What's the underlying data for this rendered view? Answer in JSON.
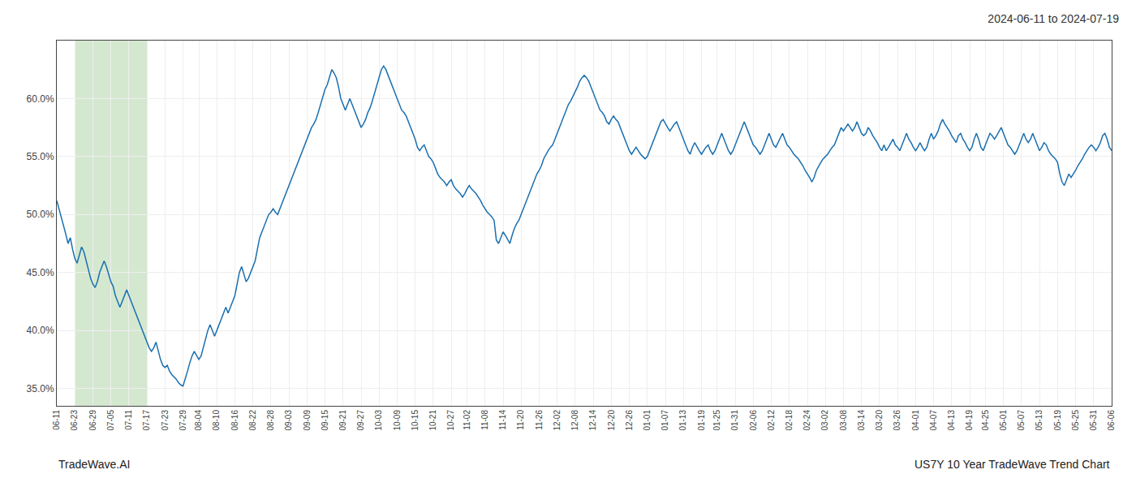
{
  "chart_data": {
    "type": "line",
    "title": "2024-06-11 to 2024-07-19",
    "annotations": [
      "TradeWave.AI",
      "US7Y 10 Year TradeWave Trend Chart"
    ],
    "categories": [
      "06-11",
      null,
      null,
      null,
      null,
      null,
      null,
      null,
      "06-23",
      null,
      null,
      null,
      null,
      null,
      null,
      null,
      "06-29",
      null,
      null,
      null,
      null,
      null,
      null,
      null,
      "07-05",
      null,
      null,
      null,
      null,
      null,
      null,
      null,
      "07-11",
      null,
      null,
      null,
      null,
      null,
      null,
      null,
      "07-17",
      null,
      null,
      null,
      null,
      null,
      null,
      null,
      "07-23",
      null,
      null,
      null,
      null,
      null,
      null,
      null,
      "07-29",
      null,
      null,
      null,
      null,
      null,
      null,
      "08-04",
      null,
      null,
      null,
      null,
      null,
      null,
      null,
      "08-10",
      null,
      null,
      null,
      null,
      null,
      null,
      null,
      "08-16",
      null,
      null,
      null,
      null,
      null,
      null,
      null,
      "08-22",
      null,
      null,
      null,
      null,
      null,
      null,
      null,
      "08-28",
      null,
      null,
      null,
      null,
      null,
      null,
      null,
      "09-03",
      null,
      null,
      null,
      null,
      null,
      null,
      null,
      "09-09",
      null,
      null,
      null,
      null,
      null,
      null,
      null,
      "09-15",
      null,
      null,
      null,
      null,
      null,
      null,
      null,
      "09-21",
      null,
      null,
      null,
      null,
      null,
      null,
      null,
      "09-27",
      null,
      null,
      null,
      null,
      null,
      null,
      null,
      "10-03",
      null,
      null,
      null,
      null,
      null,
      null,
      null,
      "10-09",
      null,
      null,
      null,
      null,
      null,
      null,
      null,
      "10-15",
      null,
      null,
      null,
      null,
      null,
      null,
      null,
      "10-21",
      null,
      null,
      null,
      null,
      null,
      null,
      null,
      "10-27",
      null,
      null,
      null,
      null,
      null,
      null,
      "11-02",
      null,
      null,
      null,
      null,
      null,
      null,
      null,
      "11-08",
      null,
      null,
      null,
      null,
      null,
      null,
      null,
      "11-14",
      null,
      null,
      null,
      null,
      null,
      null,
      null,
      "11-20",
      null,
      null,
      null,
      null,
      null,
      null,
      null,
      "11-26",
      null,
      null,
      null,
      null,
      null,
      null,
      null,
      "12-02",
      null,
      null,
      null,
      null,
      null,
      null,
      null,
      "12-08",
      null,
      null,
      null,
      null,
      null,
      null,
      null,
      "12-14",
      null,
      null,
      null,
      null,
      null,
      null,
      null,
      "12-20",
      null,
      null,
      null,
      null,
      null,
      null,
      null,
      "12-26",
      null,
      null,
      null,
      null,
      null,
      null,
      null,
      "01-01",
      null,
      null,
      null,
      null,
      null,
      null,
      null,
      "01-07",
      null,
      null,
      null,
      null,
      null,
      null,
      null,
      "01-13",
      null,
      null,
      null,
      null,
      null,
      null,
      null,
      "01-19",
      null,
      null,
      null,
      null,
      null,
      null,
      "01-25",
      null,
      null,
      null,
      null,
      null,
      null,
      null,
      "01-31",
      null,
      null,
      null,
      null,
      null,
      null,
      null,
      "02-06",
      null,
      null,
      null,
      null,
      null,
      null,
      null,
      "02-12",
      null,
      null,
      null,
      null,
      null,
      null,
      null,
      "02-18",
      null,
      null,
      null,
      null,
      null,
      null,
      null,
      "02-24",
      null,
      null,
      null,
      null,
      null,
      null,
      null,
      "03-02",
      null,
      null,
      null,
      null,
      null,
      null,
      null,
      "03-08",
      null,
      null,
      null,
      null,
      null,
      null,
      null,
      "03-14",
      null,
      null,
      null,
      null,
      null,
      null,
      null,
      "03-20",
      null,
      null,
      null,
      null,
      null,
      null,
      null,
      "03-26",
      null,
      null,
      null,
      null,
      null,
      null,
      null,
      "04-01",
      null,
      null,
      null,
      null,
      null,
      null,
      null,
      "04-07",
      null,
      null,
      null,
      null,
      null,
      null,
      null,
      "04-13",
      null,
      null,
      null,
      null,
      null,
      null,
      null,
      "04-19",
      null,
      null,
      null,
      null,
      null,
      null,
      "04-25",
      null,
      null,
      null,
      null,
      null,
      null,
      null,
      "05-01",
      null,
      null,
      null,
      null,
      null,
      null,
      null,
      "05-07",
      null,
      null,
      null,
      null,
      null,
      null,
      null,
      "05-13",
      null,
      null,
      null,
      null,
      null,
      null,
      null,
      "05-19",
      null,
      null,
      null,
      null,
      null,
      null,
      null,
      "05-25",
      null,
      null,
      null,
      null,
      null,
      null,
      null,
      "05-31",
      null,
      null,
      null,
      null,
      null,
      null,
      null,
      "06-06"
    ],
    "values": [
      51.2,
      50.5,
      49.8,
      49.0,
      48.3,
      47.5,
      48.0,
      47.0,
      46.2,
      45.8,
      46.5,
      47.2,
      46.8,
      46.0,
      45.2,
      44.5,
      44.0,
      43.7,
      44.2,
      45.0,
      45.5,
      46.0,
      45.5,
      44.8,
      44.2,
      43.8,
      43.0,
      42.5,
      42.0,
      42.5,
      43.0,
      43.5,
      43.0,
      42.5,
      42.0,
      41.5,
      41.0,
      40.5,
      40.0,
      39.5,
      39.0,
      38.5,
      38.2,
      38.5,
      39.0,
      38.2,
      37.5,
      37.0,
      36.8,
      37.0,
      36.5,
      36.2,
      36.0,
      35.8,
      35.5,
      35.3,
      35.2,
      35.8,
      36.5,
      37.2,
      37.8,
      38.2,
      37.8,
      37.5,
      37.8,
      38.5,
      39.2,
      40.0,
      40.5,
      40.0,
      39.5,
      40.0,
      40.5,
      41.0,
      41.5,
      42.0,
      41.5,
      42.0,
      42.5,
      43.0,
      44.0,
      45.0,
      45.5,
      44.8,
      44.2,
      44.5,
      45.0,
      45.5,
      46.0,
      47.0,
      48.0,
      48.5,
      49.0,
      49.5,
      50.0,
      50.2,
      50.5,
      50.2,
      50.0,
      50.5,
      51.0,
      51.5,
      52.0,
      52.5,
      53.0,
      53.5,
      54.0,
      54.5,
      55.0,
      55.5,
      56.0,
      56.5,
      57.0,
      57.5,
      57.8,
      58.2,
      58.8,
      59.5,
      60.2,
      60.8,
      61.2,
      61.8,
      62.5,
      62.2,
      61.8,
      61.0,
      60.0,
      59.5,
      59.0,
      59.5,
      60.0,
      59.5,
      59.0,
      58.5,
      58.0,
      57.5,
      57.8,
      58.2,
      58.8,
      59.2,
      59.8,
      60.5,
      61.2,
      61.8,
      62.5,
      62.8,
      62.5,
      62.0,
      61.5,
      61.0,
      60.5,
      60.0,
      59.5,
      59.0,
      58.8,
      58.5,
      58.0,
      57.5,
      57.0,
      56.5,
      55.8,
      55.5,
      55.8,
      56.0,
      55.5,
      55.0,
      54.8,
      54.5,
      54.0,
      53.5,
      53.2,
      53.0,
      52.8,
      52.5,
      52.8,
      53.0,
      52.5,
      52.2,
      52.0,
      51.8,
      51.5,
      51.8,
      52.2,
      52.5,
      52.2,
      52.0,
      51.8,
      51.5,
      51.2,
      50.8,
      50.5,
      50.2,
      50.0,
      49.8,
      49.5,
      47.8,
      47.5,
      48.0,
      48.5,
      48.2,
      47.8,
      47.5,
      48.2,
      48.8,
      49.2,
      49.5,
      50.0,
      50.5,
      51.0,
      51.5,
      52.0,
      52.5,
      53.0,
      53.5,
      53.8,
      54.2,
      54.8,
      55.2,
      55.5,
      55.8,
      56.0,
      56.5,
      57.0,
      57.5,
      58.0,
      58.5,
      59.0,
      59.5,
      59.8,
      60.2,
      60.5,
      61.0,
      61.5,
      61.8,
      62.0,
      61.8,
      61.5,
      61.0,
      60.5,
      60.0,
      59.5,
      59.0,
      58.8,
      58.5,
      58.0,
      57.8,
      58.2,
      58.5,
      58.2,
      58.0,
      57.5,
      57.0,
      56.5,
      56.0,
      55.5,
      55.2,
      55.5,
      55.8,
      55.5,
      55.2,
      55.0,
      54.8,
      55.0,
      55.5,
      56.0,
      56.5,
      57.0,
      57.5,
      58.0,
      58.2,
      57.8,
      57.5,
      57.2,
      57.5,
      57.8,
      58.0,
      57.5,
      57.0,
      56.5,
      56.0,
      55.5,
      55.2,
      55.8,
      56.2,
      55.8,
      55.5,
      55.2,
      55.5,
      55.8,
      56.0,
      55.5,
      55.2,
      55.5,
      56.0,
      56.5,
      57.0,
      56.5,
      56.0,
      55.5,
      55.2,
      55.5,
      56.0,
      56.5,
      57.0,
      57.5,
      58.0,
      57.5,
      57.0,
      56.5,
      56.0,
      55.8,
      55.5,
      55.2,
      55.5,
      56.0,
      56.5,
      57.0,
      56.5,
      56.0,
      55.8,
      56.2,
      56.5,
      57.0,
      56.5,
      56.0,
      55.8,
      55.5,
      55.2,
      55.0,
      54.8,
      54.5,
      54.2,
      53.8,
      53.5,
      53.2,
      52.8,
      53.2,
      53.8,
      54.2,
      54.5,
      54.8,
      55.0,
      55.2,
      55.5,
      55.8,
      56.0,
      56.5,
      57.0,
      57.5,
      57.2,
      57.5,
      57.8,
      57.5,
      57.2,
      57.5,
      58.0,
      57.5,
      57.0,
      56.8,
      57.0,
      57.5,
      57.2,
      56.8,
      56.5,
      56.2,
      55.8,
      55.5,
      56.0,
      55.5,
      55.8,
      56.2,
      56.5,
      56.0,
      55.8,
      55.5,
      56.0,
      56.5,
      57.0,
      56.5,
      56.2,
      55.8,
      55.5,
      55.8,
      56.2,
      55.8,
      55.5,
      55.8,
      56.5,
      57.0,
      56.5,
      56.8,
      57.2,
      57.8,
      58.2,
      57.8,
      57.5,
      57.2,
      56.8,
      56.5,
      56.2,
      56.8,
      57.0,
      56.5,
      56.2,
      55.8,
      55.5,
      55.8,
      56.5,
      57.0,
      56.5,
      55.8,
      55.5,
      56.0,
      56.5,
      57.0,
      56.8,
      56.5,
      56.8,
      57.2,
      57.5,
      57.0,
      56.5,
      56.0,
      55.8,
      55.5,
      55.2,
      55.5,
      56.0,
      56.5,
      57.0,
      56.5,
      56.2,
      56.5,
      57.0,
      56.5,
      56.0,
      55.5,
      55.8,
      56.2,
      56.0,
      55.5,
      55.2,
      55.0,
      54.8,
      54.5,
      53.5,
      52.8,
      52.5,
      53.0,
      53.5,
      53.2,
      53.5,
      53.8,
      54.2,
      54.5,
      54.8,
      55.2,
      55.5,
      55.8,
      56.0,
      55.8,
      55.5,
      55.8,
      56.2,
      56.8,
      57.0,
      56.5,
      55.8,
      55.5
    ],
    "color": "#1a6faf",
    "shaded_span": {
      "start": "06-23",
      "end": "07-17",
      "color": "#d4e8d0"
    },
    "ylim": [
      33.5,
      65.0
    ],
    "yticks": [
      {
        "value": 35.0,
        "label": "35.0%"
      },
      {
        "value": 40.0,
        "label": "40.0%"
      },
      {
        "value": 45.0,
        "label": "45.0%"
      },
      {
        "value": 50.0,
        "label": "50.0%"
      },
      {
        "value": 55.0,
        "label": "55.0%"
      },
      {
        "value": 60.0,
        "label": "60.0%"
      }
    ],
    "grid": true
  }
}
